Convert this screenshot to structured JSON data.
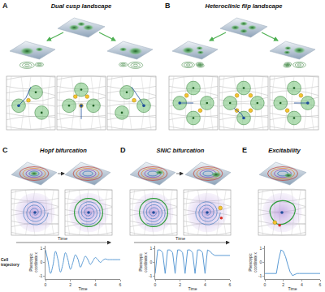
{
  "diagram": {
    "panels": [
      {
        "label": "A",
        "title": "Dual cusp landscape"
      },
      {
        "label": "B",
        "title": "Heteroclinic flip landscape"
      },
      {
        "label": "C",
        "title": "Hopf bifurcation",
        "time_label": "Time"
      },
      {
        "label": "D",
        "title": "SNIC bifurcation",
        "time_label": "Time"
      },
      {
        "label": "E",
        "title": "Excitability"
      }
    ],
    "row_label": "Cell trajectory"
  },
  "chart_data": [
    {
      "type": "line",
      "x_label": "Time",
      "y_label": "Phenotypic coordinate x",
      "color": "#5b9bd5",
      "grid": false,
      "x": [
        0,
        0.2,
        0.4,
        0.6,
        0.8,
        1.0,
        1.2,
        1.4,
        1.6,
        1.8,
        2.0,
        2.2,
        2.4,
        2.6,
        2.8,
        3.0,
        3.2,
        3.4,
        3.6,
        3.8,
        4.0,
        4.2,
        4.4,
        4.6,
        4.8,
        5.0,
        5.2,
        5.4,
        5.6,
        5.8,
        6.0
      ],
      "values": [
        0.9,
        0.1,
        -0.8,
        -0.2,
        0.8,
        0.2,
        -0.7,
        -0.1,
        0.7,
        0.2,
        -0.5,
        0,
        0.55,
        0.25,
        -0.35,
        0.05,
        0.45,
        0.2,
        -0.15,
        0.1,
        0.35,
        0.2,
        0,
        0.15,
        0.25,
        0.2,
        0.2,
        0.2,
        0.2,
        0.2,
        0.2
      ],
      "xlim": [
        0,
        6
      ],
      "xticks": [
        0,
        2,
        4,
        6
      ],
      "ylim": [
        -1.2,
        1.2
      ],
      "yticks": [
        -1,
        0,
        1
      ]
    },
    {
      "type": "line",
      "x_label": "Time",
      "y_label": "Phenotypic coordinate x",
      "color": "#5b9bd5",
      "grid": false,
      "x": [
        0,
        0.2,
        0.4,
        0.6,
        0.8,
        1.0,
        1.2,
        1.4,
        1.6,
        1.8,
        2.0,
        2.2,
        2.4,
        2.6,
        2.8,
        3.0,
        3.2,
        3.4,
        3.6,
        3.8,
        4.0,
        4.2,
        4.4,
        4.6,
        4.8,
        5.0,
        5.2,
        5.4,
        5.6,
        5.8,
        6.0
      ],
      "values": [
        -0.8,
        0.9,
        0.9,
        0.7,
        -0.8,
        0.9,
        0.9,
        0.7,
        -0.8,
        0.9,
        0.9,
        0.7,
        -0.8,
        0.9,
        0.9,
        0.7,
        -0.8,
        0.9,
        0.9,
        0.7,
        -0.8,
        0.9,
        0.8,
        0.6,
        0.5,
        0.5,
        0.5,
        0.5,
        0.5,
        0.5,
        0.5
      ],
      "xlim": [
        0,
        6
      ],
      "xticks": [
        0,
        2,
        4,
        6
      ],
      "ylim": [
        -1.2,
        1.2
      ],
      "yticks": [
        -1,
        0,
        1
      ]
    },
    {
      "type": "line",
      "x_label": "Time",
      "y_label": "Phenotypic coordinate x",
      "color": "#5b9bd5",
      "grid": false,
      "x": [
        0,
        0.25,
        0.5,
        0.75,
        1.0,
        1.25,
        1.5,
        1.75,
        2.0,
        2.25,
        2.5,
        2.75,
        3.0,
        3.25,
        3.5,
        3.75,
        4.0,
        4.25,
        4.5,
        4.75,
        5.0,
        5.25,
        5.5,
        5.75,
        6.0
      ],
      "values": [
        -0.8,
        -0.8,
        -0.8,
        -0.8,
        -0.8,
        -0.8,
        0.2,
        0.9,
        0.8,
        0.4,
        -0.2,
        -0.7,
        -0.95,
        -0.85,
        -0.8,
        -0.8,
        -0.8,
        -0.8,
        -0.8,
        -0.8,
        -0.8,
        -0.8,
        -0.8,
        -0.8,
        -0.8
      ],
      "xlim": [
        0,
        6
      ],
      "xticks": [
        0,
        2,
        4,
        6
      ],
      "ylim": [
        -1.2,
        1.2
      ],
      "yticks": [
        -1,
        0,
        1
      ]
    }
  ]
}
